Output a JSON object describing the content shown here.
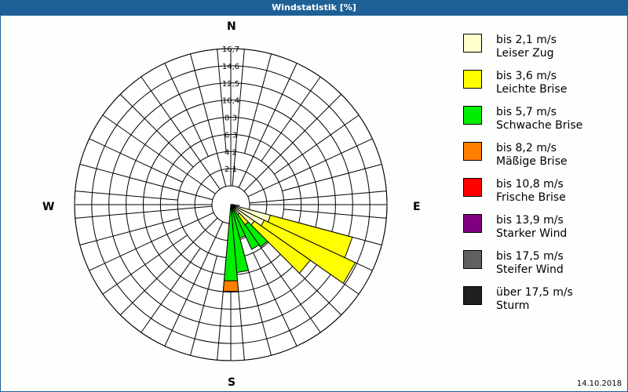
{
  "header": {
    "title": "Windstatistik [%]"
  },
  "compass": {
    "n": "N",
    "e": "E",
    "s": "S",
    "w": "W"
  },
  "footer": {
    "date": "14.10.2018"
  },
  "legend": [
    {
      "range": "bis 2,1 m/s",
      "name": "Leiser Zug",
      "color": "#ffffcc"
    },
    {
      "range": "bis 3,6 m/s",
      "name": "Leichte Brise",
      "color": "#ffff00"
    },
    {
      "range": "bis 5,7 m/s",
      "name": "Schwache Brise",
      "color": "#00ee00"
    },
    {
      "range": "bis 8,2 m/s",
      "name": "Mäßige Brise",
      "color": "#ff8000"
    },
    {
      "range": "bis 10,8 m/s",
      "name": "Frische Brise",
      "color": "#ff0000"
    },
    {
      "range": "bis 13,9 m/s",
      "name": "Starker Wind",
      "color": "#800080"
    },
    {
      "range": "bis 17,5 m/s",
      "name": "Steifer Wind",
      "color": "#606060"
    },
    {
      "range": "über 17,5 m/s",
      "name": "Sturm",
      "color": "#202020"
    }
  ],
  "chart_data": {
    "type": "windrose",
    "title": "Windstatistik [%]",
    "unit": "%",
    "sectors": 36,
    "sector_width_deg": 10,
    "radial_ticks": [
      "2,1",
      "4,2",
      "6,3",
      "8,3",
      "10,4",
      "12,5",
      "14,6",
      "16,7"
    ],
    "rmax": 16.7,
    "speed_classes": [
      "bis 2,1 m/s",
      "bis 3,6 m/s",
      "bis 5,7 m/s",
      "bis 8,2 m/s",
      "bis 10,8 m/s",
      "bis 13,9 m/s",
      "bis 17,5 m/s",
      "über 17,5 m/s"
    ],
    "data": [
      {
        "dir": 80,
        "values": [
          0.1,
          0,
          0,
          0,
          0,
          0,
          0,
          0
        ]
      },
      {
        "dir": 90,
        "values": [
          0.3,
          0,
          0,
          0,
          0,
          0,
          0,
          0
        ]
      },
      {
        "dir": 100,
        "values": [
          1.0,
          0,
          0,
          0,
          0,
          0,
          0,
          0
        ]
      },
      {
        "dir": 110,
        "values": [
          5.0,
          10.3,
          0,
          0,
          0,
          0,
          0,
          0
        ]
      },
      {
        "dir": 120,
        "values": [
          4.5,
          12.2,
          0,
          0,
          0,
          0,
          0,
          0
        ]
      },
      {
        "dir": 130,
        "values": [
          3.5,
          8.3,
          0,
          0,
          0,
          0,
          0,
          0
        ]
      },
      {
        "dir": 140,
        "values": [
          1.5,
          1.5,
          3.3,
          0,
          0,
          0,
          0,
          0
        ]
      },
      {
        "dir": 150,
        "values": [
          0.5,
          0.3,
          5.2,
          0,
          0,
          0,
          0,
          0
        ]
      },
      {
        "dir": 160,
        "values": [
          0.2,
          0,
          4.0,
          0,
          0,
          0,
          0,
          0
        ]
      },
      {
        "dir": 170,
        "values": [
          0.1,
          0,
          8.2,
          0,
          0,
          0,
          0,
          0
        ]
      },
      {
        "dir": 180,
        "values": [
          0.1,
          0,
          9.2,
          1.3,
          0,
          0,
          0,
          0
        ]
      }
    ]
  }
}
